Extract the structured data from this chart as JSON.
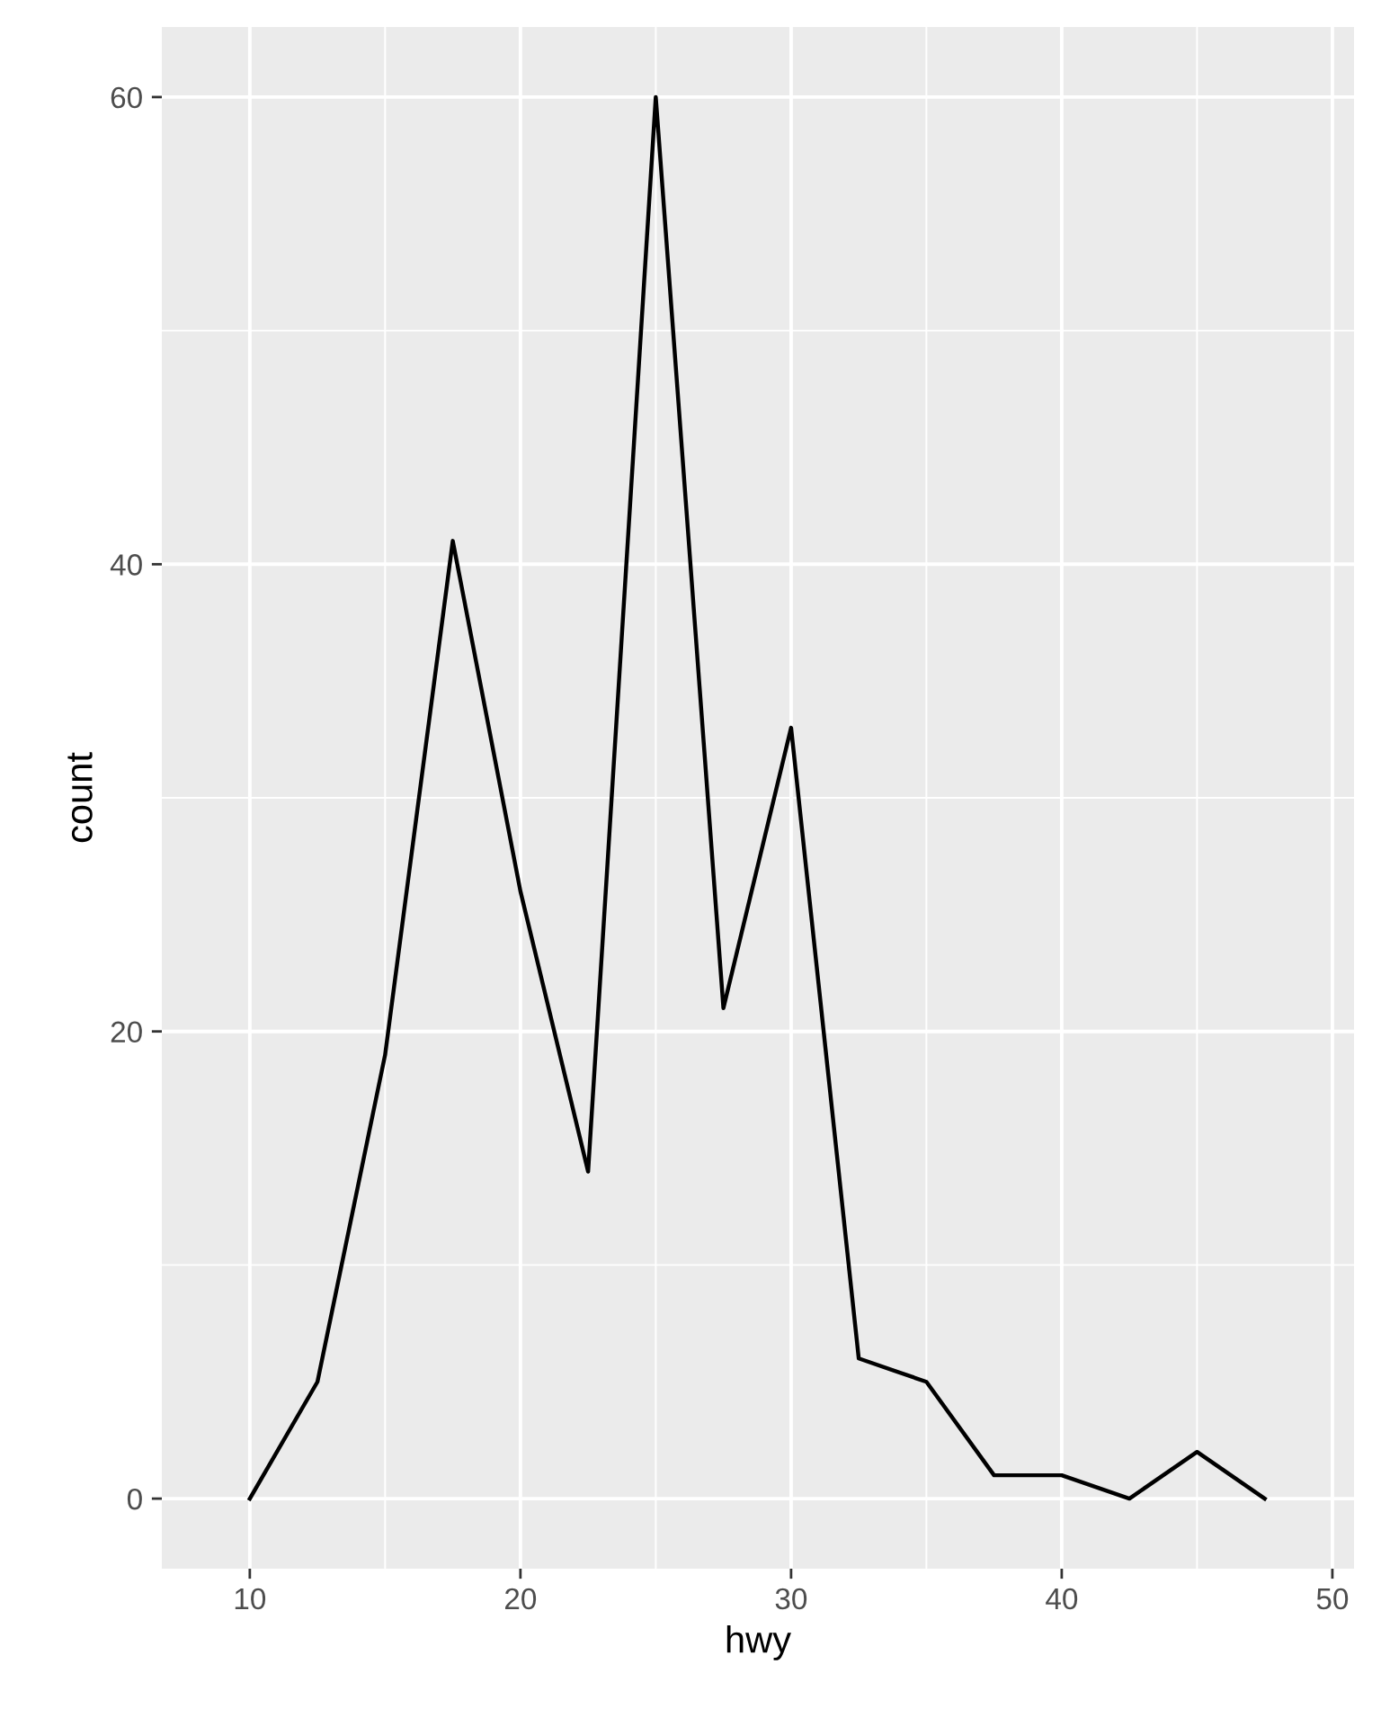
{
  "chart_data": {
    "type": "line",
    "xlabel": "hwy",
    "ylabel": "count",
    "x": [
      10,
      12.5,
      15,
      17.5,
      20,
      22.5,
      25,
      27.5,
      30,
      32.5,
      35,
      37.5,
      40,
      42.5,
      45,
      47.5
    ],
    "series": [
      {
        "color": "#000000",
        "values": [
          0,
          5,
          19,
          41,
          26,
          14,
          60,
          21,
          33,
          6,
          5,
          1,
          1,
          0,
          2,
          0
        ]
      }
    ],
    "xlim": [
      6.75,
      50.8
    ],
    "xticks": [
      10,
      20,
      30,
      40,
      50
    ],
    "ylim": [
      -3,
      63
    ],
    "yticks": [
      0,
      20,
      40,
      60
    ],
    "grid": true,
    "legend": false
  }
}
